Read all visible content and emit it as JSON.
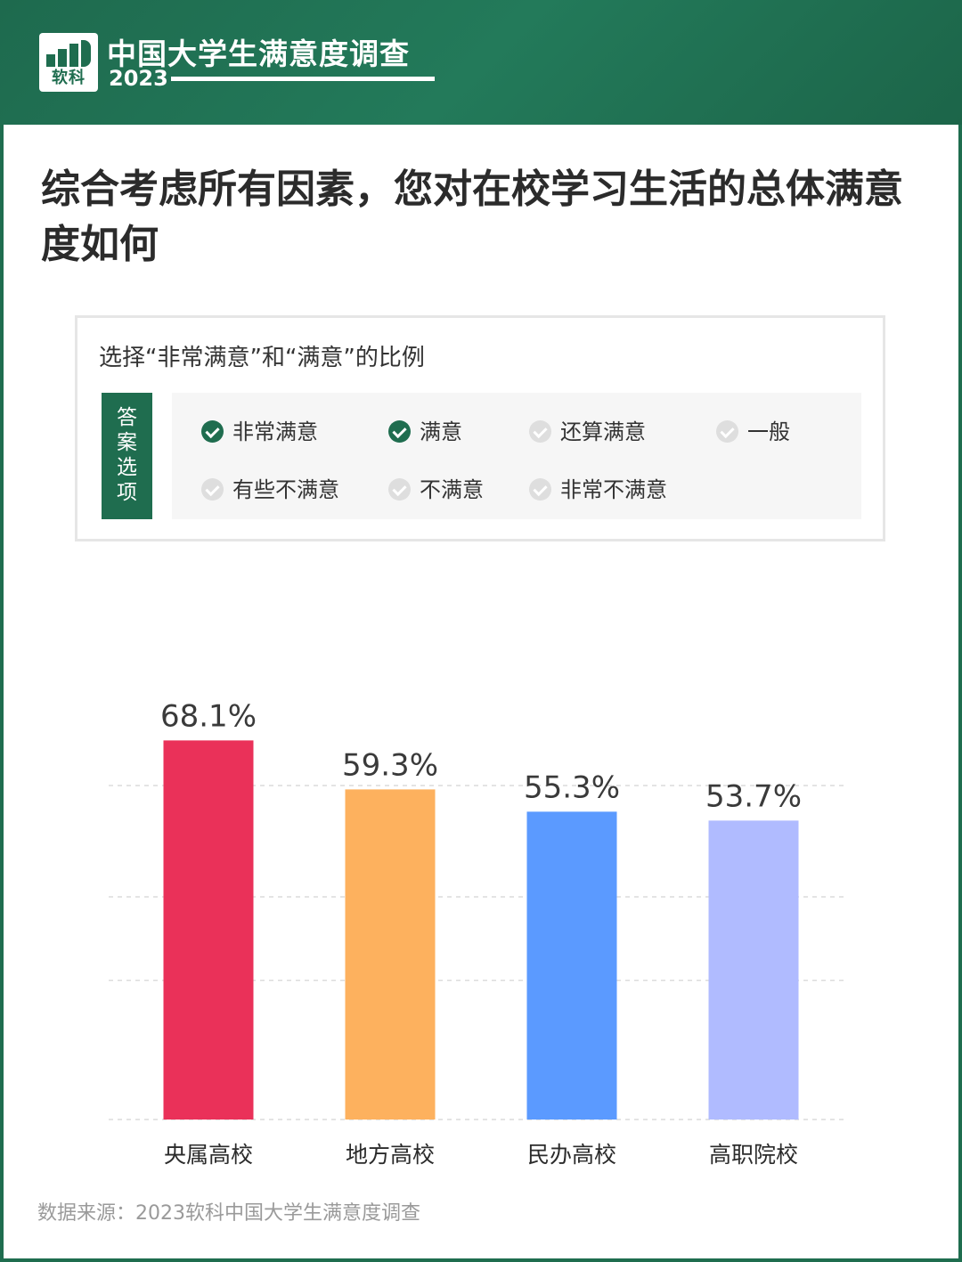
{
  "header": {
    "logo_text": "软科",
    "title": "中国大学生满意度调查",
    "year": "2023"
  },
  "question": "综合考虑所有因素，您对在校学习生活的总体满意度如何",
  "options_panel": {
    "title": "选择“非常满意”和“满意”的比例",
    "tag": "答案选项",
    "options": [
      {
        "label": "非常满意",
        "checked": true
      },
      {
        "label": "满意",
        "checked": true
      },
      {
        "label": "还算满意",
        "checked": false
      },
      {
        "label": "一般",
        "checked": false
      },
      {
        "label": "有些不满意",
        "checked": false
      },
      {
        "label": "不满意",
        "checked": false
      },
      {
        "label": "非常不满意",
        "checked": false
      }
    ]
  },
  "chart_data": {
    "type": "bar",
    "categories": [
      "央属高校",
      "地方高校",
      "民办高校",
      "高职院校"
    ],
    "values": [
      68.1,
      59.3,
      55.3,
      53.7
    ],
    "labels": [
      "68.1%",
      "59.3%",
      "55.3%",
      "53.7%"
    ],
    "colors": [
      "#ea3159",
      "#fdb15e",
      "#5b9aff",
      "#b0bbff"
    ],
    "ylim": [
      0,
      100
    ],
    "grid": true,
    "legend": "none"
  },
  "source": "数据来源：2023软科中国大学生满意度调查"
}
